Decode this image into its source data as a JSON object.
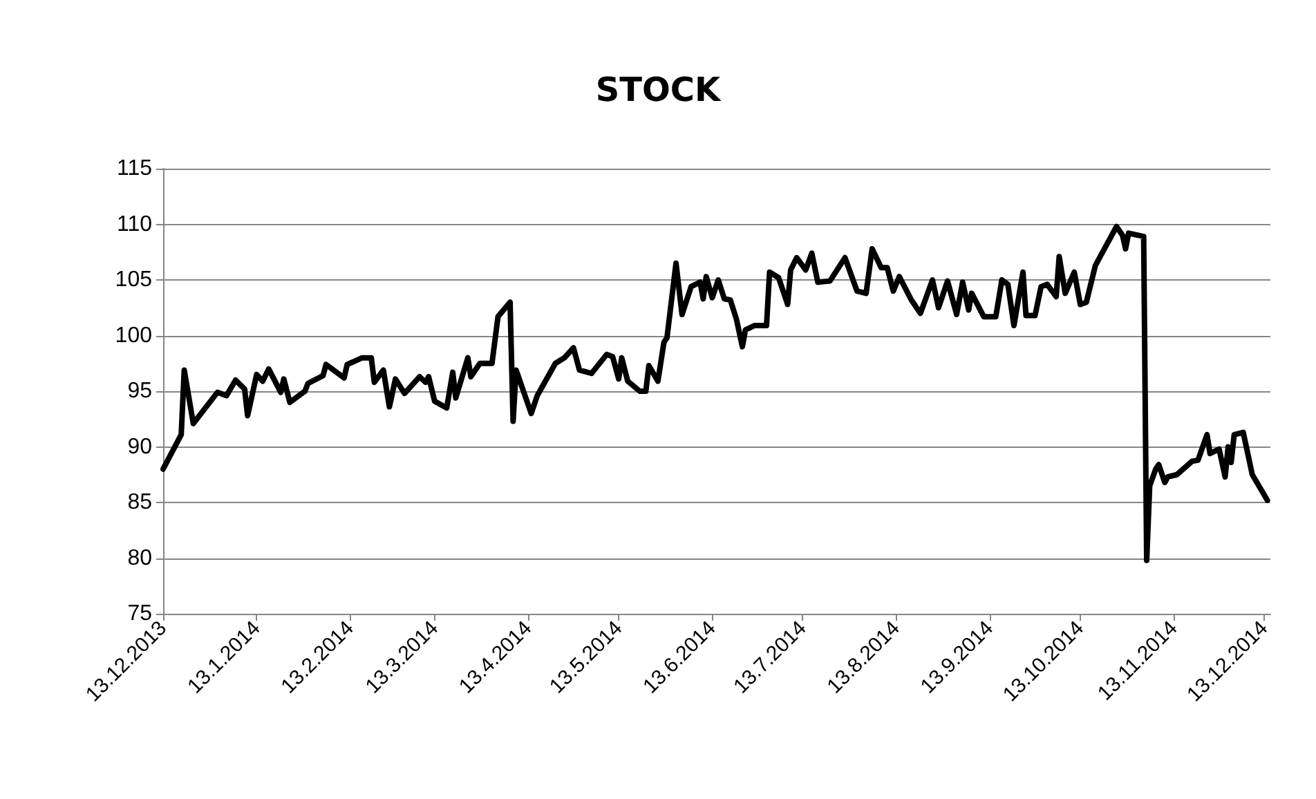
{
  "chart_data": {
    "type": "line",
    "title": "STOCK",
    "x": [
      "2013-12-13",
      "2013-12-19",
      "2013-12-20",
      "2013-12-23",
      "2013-12-31",
      "2014-01-03",
      "2014-01-06",
      "2014-01-09",
      "2014-01-10",
      "2014-01-13",
      "2014-01-15",
      "2014-01-17",
      "2014-01-21",
      "2014-01-22",
      "2014-01-24",
      "2014-01-29",
      "2014-01-30",
      "2014-02-04",
      "2014-02-05",
      "2014-02-11",
      "2014-02-12",
      "2014-02-17",
      "2014-02-20",
      "2014-02-21",
      "2014-02-24",
      "2014-02-26",
      "2014-02-28",
      "2014-03-03",
      "2014-03-08",
      "2014-03-10",
      "2014-03-11",
      "2014-03-13",
      "2014-03-17",
      "2014-03-19",
      "2014-03-20",
      "2014-03-24",
      "2014-03-25",
      "2014-03-28",
      "2014-04-01",
      "2014-04-03",
      "2014-04-07",
      "2014-04-08",
      "2014-04-09",
      "2014-04-14",
      "2014-04-16",
      "2014-04-22",
      "2014-04-25",
      "2014-04-28",
      "2014-04-30",
      "2014-05-04",
      "2014-05-09",
      "2014-05-11",
      "2014-05-13",
      "2014-05-14",
      "2014-05-16",
      "2014-05-20",
      "2014-05-22",
      "2014-05-23",
      "2014-05-26",
      "2014-05-28",
      "2014-05-29",
      "2014-06-01",
      "2014-06-03",
      "2014-06-06",
      "2014-06-09",
      "2014-06-10",
      "2014-06-11",
      "2014-06-13",
      "2014-06-15",
      "2014-06-17",
      "2014-06-19",
      "2014-06-21",
      "2014-06-23",
      "2014-06-24",
      "2014-06-27",
      "2014-07-01",
      "2014-07-02",
      "2014-07-05",
      "2014-07-08",
      "2014-07-09",
      "2014-07-11",
      "2014-07-14",
      "2014-07-16",
      "2014-07-18",
      "2014-07-22",
      "2014-07-27",
      "2014-07-31",
      "2014-08-03",
      "2014-08-05",
      "2014-08-08",
      "2014-08-10",
      "2014-08-12",
      "2014-08-14",
      "2014-08-18",
      "2014-08-21",
      "2014-08-25",
      "2014-08-27",
      "2014-08-30",
      "2014-09-02",
      "2014-09-04",
      "2014-09-06",
      "2014-09-07",
      "2014-09-11",
      "2014-09-15",
      "2014-09-17",
      "2014-09-19",
      "2014-09-21",
      "2014-09-24",
      "2014-09-25",
      "2014-09-28",
      "2014-09-30",
      "2014-10-02",
      "2014-10-05",
      "2014-10-06",
      "2014-10-08",
      "2014-10-11",
      "2014-10-13",
      "2014-10-15",
      "2014-10-18",
      "2014-10-21",
      "2014-10-25",
      "2014-10-27",
      "2014-10-28",
      "2014-10-29",
      "2014-11-03",
      "2014-11-04",
      "2014-11-05",
      "2014-11-07",
      "2014-11-08",
      "2014-11-10",
      "2014-11-11",
      "2014-11-14",
      "2014-11-19",
      "2014-11-21",
      "2014-11-24",
      "2014-11-25",
      "2014-11-28",
      "2014-11-30",
      "2014-12-01",
      "2014-12-02",
      "2014-12-03",
      "2014-12-06",
      "2014-12-09",
      "2014-12-14"
    ],
    "series": [
      {
        "color": "#000000",
        "values": [
          88.0,
          91.1,
          96.9,
          92.1,
          94.9,
          94.6,
          96.0,
          95.2,
          92.8,
          96.5,
          95.9,
          97.0,
          94.9,
          96.1,
          94.0,
          95.0,
          95.7,
          96.4,
          97.4,
          96.2,
          97.4,
          98.0,
          98.0,
          95.8,
          96.9,
          93.6,
          96.1,
          94.8,
          96.3,
          95.8,
          96.3,
          94.1,
          93.5,
          96.7,
          94.4,
          98.0,
          96.3,
          97.5,
          97.5,
          101.7,
          103.0,
          92.3,
          96.9,
          93.0,
          94.6,
          97.5,
          98.0,
          98.9,
          96.9,
          96.6,
          98.3,
          98.1,
          96.1,
          98.0,
          95.9,
          95.0,
          95.0,
          97.3,
          95.9,
          99.4,
          99.8,
          106.5,
          101.9,
          104.4,
          104.8,
          103.3,
          105.3,
          103.4,
          105.0,
          103.3,
          103.2,
          101.5,
          99.0,
          100.5,
          100.9,
          100.9,
          105.7,
          105.2,
          102.8,
          105.9,
          107.0,
          105.9,
          107.4,
          104.8,
          104.9,
          107.0,
          104.0,
          103.8,
          107.8,
          106.1,
          106.1,
          104.0,
          105.3,
          103.2,
          102.0,
          105.0,
          102.5,
          104.9,
          101.9,
          104.8,
          102.3,
          103.8,
          101.7,
          101.7,
          105.0,
          104.6,
          100.9,
          105.7,
          101.8,
          101.8,
          104.4,
          104.6,
          103.5,
          107.1,
          103.8,
          105.7,
          102.8,
          103.0,
          106.3,
          107.8,
          109.8,
          109.0,
          107.8,
          109.2,
          108.9,
          79.8,
          86.5,
          88.0,
          88.4,
          86.8,
          87.3,
          87.5,
          88.7,
          88.8,
          91.1,
          89.4,
          89.8,
          87.3,
          90.0,
          88.6,
          91.1,
          91.3,
          87.5,
          85.2
        ]
      }
    ],
    "xlim": [
      "2013-12-13",
      "2014-12-15"
    ],
    "xticks": [
      {
        "value": "2013-12-13",
        "label": "13.12.2013"
      },
      {
        "value": "2014-01-13",
        "label": "13.1.2014"
      },
      {
        "value": "2014-02-13",
        "label": "13.2.2014"
      },
      {
        "value": "2014-03-13",
        "label": "13.3.2014"
      },
      {
        "value": "2014-04-13",
        "label": "13.4.2014"
      },
      {
        "value": "2014-05-13",
        "label": "13.5.2014"
      },
      {
        "value": "2014-06-13",
        "label": "13.6.2014"
      },
      {
        "value": "2014-07-13",
        "label": "13.7.2014"
      },
      {
        "value": "2014-08-13",
        "label": "13.8.2014"
      },
      {
        "value": "2014-09-13",
        "label": "13.9.2014"
      },
      {
        "value": "2014-10-13",
        "label": "13.10.2014"
      },
      {
        "value": "2014-11-13",
        "label": "13.11.2014"
      },
      {
        "value": "2014-12-13",
        "label": "13.12.2014"
      }
    ],
    "ylim": [
      75,
      115
    ],
    "yticks": [
      75,
      80,
      85,
      90,
      95,
      100,
      105,
      110,
      115
    ],
    "grid": "y",
    "marker": "none",
    "line_style": "solid"
  }
}
